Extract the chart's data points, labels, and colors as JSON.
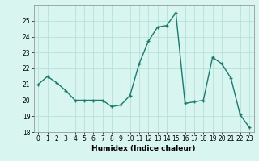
{
  "x": [
    0,
    1,
    2,
    3,
    4,
    5,
    6,
    7,
    8,
    9,
    10,
    11,
    12,
    13,
    14,
    15,
    16,
    17,
    18,
    19,
    20,
    21,
    22,
    23
  ],
  "y": [
    21.0,
    21.5,
    21.1,
    20.6,
    20.0,
    20.0,
    20.0,
    20.0,
    19.6,
    19.7,
    20.3,
    22.3,
    23.7,
    24.6,
    24.7,
    25.5,
    19.8,
    19.9,
    20.0,
    22.7,
    22.3,
    21.4,
    19.1,
    18.3
  ],
  "line_color": "#1a7a6e",
  "marker": "+",
  "marker_size": 3,
  "marker_lw": 1.0,
  "bg_color": "#d8f5f0",
  "grid_color": "#b0ddd8",
  "xlabel": "Humidex (Indice chaleur)",
  "ylim": [
    18,
    26
  ],
  "xlim": [
    -0.5,
    23.5
  ],
  "yticks": [
    18,
    19,
    20,
    21,
    22,
    23,
    24,
    25
  ],
  "xticks": [
    0,
    1,
    2,
    3,
    4,
    5,
    6,
    7,
    8,
    9,
    10,
    11,
    12,
    13,
    14,
    15,
    16,
    17,
    18,
    19,
    20,
    21,
    22,
    23
  ],
  "label_fontsize": 6.5,
  "tick_fontsize": 5.5
}
